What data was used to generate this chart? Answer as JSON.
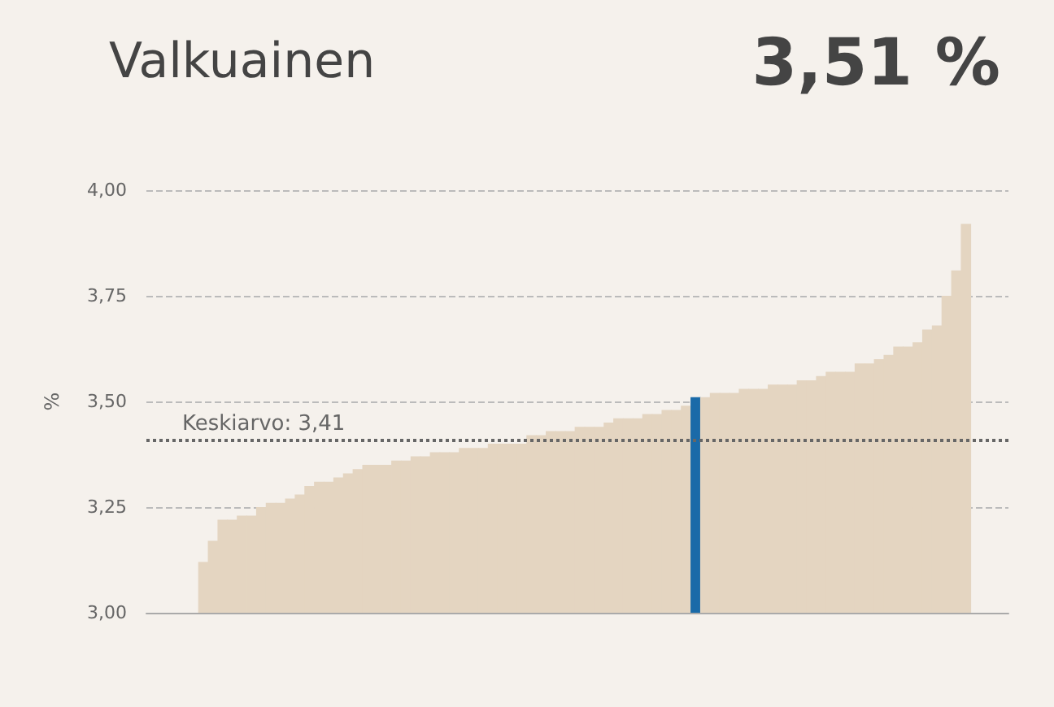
{
  "chart_data": {
    "type": "bar",
    "title": "Valkuainen",
    "subtitle": "3,51 %",
    "ylabel": "%",
    "categories": [
      null,
      null,
      null,
      null,
      null,
      null,
      null,
      null,
      null,
      null,
      null,
      null,
      null,
      null,
      null,
      null,
      null,
      null,
      null,
      null,
      null,
      null,
      null,
      null,
      null,
      null,
      null,
      null,
      null,
      null,
      null,
      null,
      null,
      null,
      null,
      null,
      null,
      null,
      null,
      null,
      null,
      null,
      null,
      null,
      null,
      null,
      null,
      null,
      null,
      null,
      null,
      null,
      null,
      null,
      null,
      null,
      null,
      null,
      null,
      null,
      null,
      null,
      null,
      null,
      null,
      null,
      null,
      null,
      null,
      null,
      null,
      null,
      null,
      null,
      null,
      null,
      null,
      null,
      null,
      null
    ],
    "values": [
      3.12,
      3.17,
      3.22,
      3.22,
      3.23,
      3.23,
      3.25,
      3.26,
      3.26,
      3.27,
      3.28,
      3.3,
      3.31,
      3.31,
      3.32,
      3.33,
      3.34,
      3.35,
      3.35,
      3.35,
      3.36,
      3.36,
      3.37,
      3.37,
      3.38,
      3.38,
      3.38,
      3.39,
      3.39,
      3.39,
      3.4,
      3.4,
      3.4,
      3.4,
      3.42,
      3.42,
      3.43,
      3.43,
      3.43,
      3.44,
      3.44,
      3.44,
      3.45,
      3.46,
      3.46,
      3.46,
      3.47,
      3.47,
      3.48,
      3.48,
      3.49,
      3.51,
      3.51,
      3.52,
      3.52,
      3.52,
      3.53,
      3.53,
      3.53,
      3.54,
      3.54,
      3.54,
      3.55,
      3.55,
      3.56,
      3.57,
      3.57,
      3.57,
      3.59,
      3.59,
      3.6,
      3.61,
      3.63,
      3.63,
      3.64,
      3.67,
      3.68,
      3.75,
      3.81,
      3.92
    ],
    "colors": [
      "#e4d5c1",
      "#e4d5c1",
      "#e4d5c1",
      "#e4d5c1",
      "#e4d5c1",
      "#e4d5c1",
      "#e4d5c1",
      "#e4d5c1",
      "#e4d5c1",
      "#e4d5c1",
      "#e4d5c1",
      "#e4d5c1",
      "#e4d5c1",
      "#e4d5c1",
      "#e4d5c1",
      "#e4d5c1",
      "#e4d5c1",
      "#e4d5c1",
      "#e4d5c1",
      "#e4d5c1",
      "#e4d5c1",
      "#e4d5c1",
      "#e4d5c1",
      "#e4d5c1",
      "#e4d5c1",
      "#e4d5c1",
      "#e4d5c1",
      "#e4d5c1",
      "#e4d5c1",
      "#e4d5c1",
      "#e4d5c1",
      "#e4d5c1",
      "#e4d5c1",
      "#e4d5c1",
      "#e4d5c1",
      "#e4d5c1",
      "#e4d5c1",
      "#e4d5c1",
      "#e4d5c1",
      "#e4d5c1",
      "#e4d5c1",
      "#e4d5c1",
      "#e4d5c1",
      "#e4d5c1",
      "#e4d5c1",
      "#e4d5c1",
      "#e4d5c1",
      "#e4d5c1",
      "#e4d5c1",
      "#e4d5c1",
      "#e4d5c1",
      "#1a6aa8",
      "#e4d5c1",
      "#e4d5c1",
      "#e4d5c1",
      "#e4d5c1",
      "#e4d5c1",
      "#e4d5c1",
      "#e4d5c1",
      "#e4d5c1",
      "#e4d5c1",
      "#e4d5c1",
      "#e4d5c1",
      "#e4d5c1",
      "#e4d5c1",
      "#e4d5c1",
      "#e4d5c1",
      "#e4d5c1",
      "#e4d5c1",
      "#e4d5c1",
      "#e4d5c1",
      "#e4d5c1",
      "#e4d5c1",
      "#e4d5c1",
      "#e4d5c1",
      "#e4d5c1",
      "#e4d5c1",
      "#e4d5c1",
      "#e4d5c1",
      "#e4d5c1"
    ],
    "ylim": [
      3.0,
      4.0
    ],
    "yticks": [
      {
        "value": 3.0,
        "label": "3,00"
      },
      {
        "value": 3.25,
        "label": "3,25"
      },
      {
        "value": 3.5,
        "label": "3,50"
      },
      {
        "value": 3.75,
        "label": "3,75"
      },
      {
        "value": 4.0,
        "label": "4,00"
      }
    ],
    "grid": "y",
    "ref_lines": [
      {
        "axis": "y",
        "value": 3.41,
        "label": "Keskiarvo: 3,41",
        "color": "#666666",
        "line_style": "dotted"
      }
    ]
  }
}
